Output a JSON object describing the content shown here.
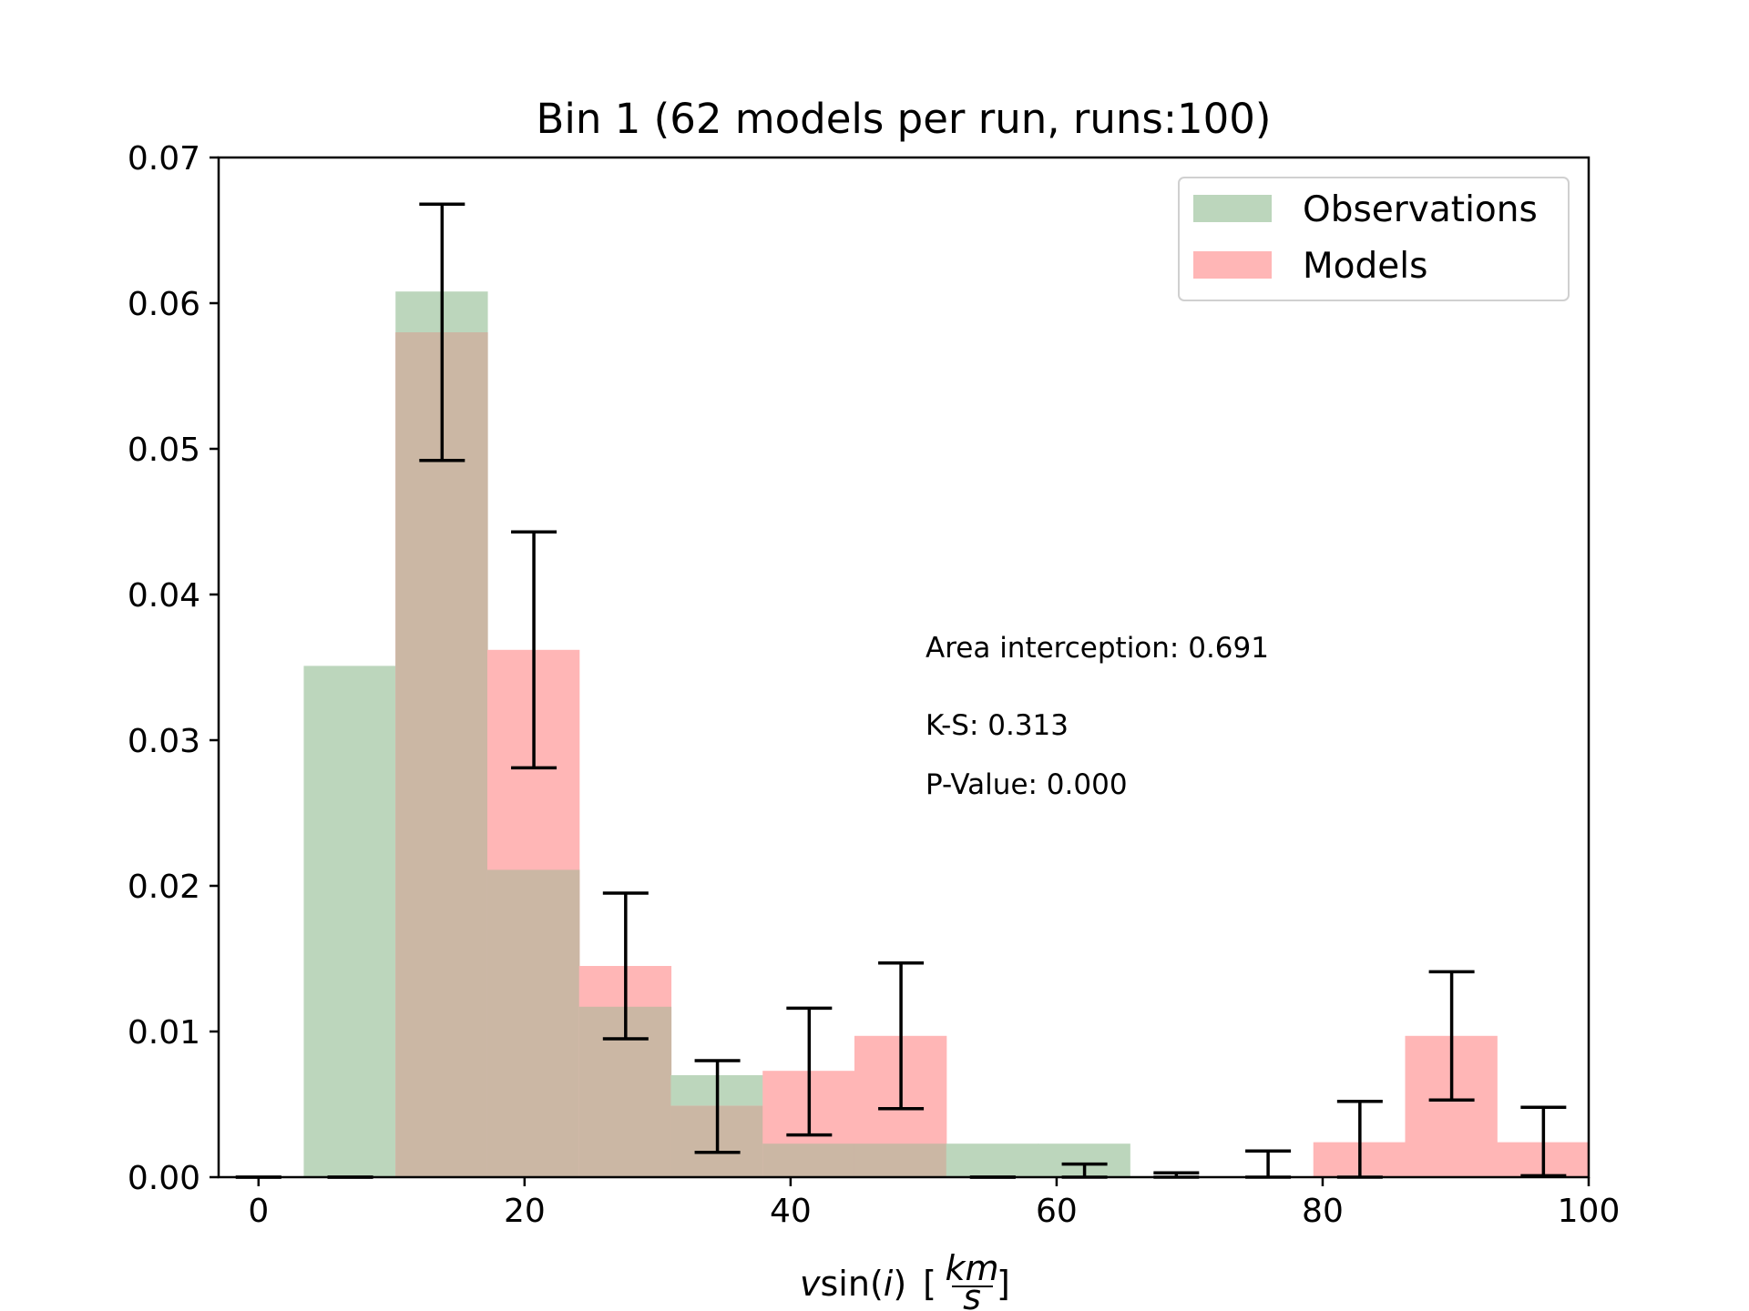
{
  "chart_data": {
    "type": "bar",
    "title": "Bin 1 (62 models per run, runs:100)",
    "xlim": [
      -3,
      100
    ],
    "ylim": [
      0,
      0.07
    ],
    "x_ticks": [
      0,
      20,
      40,
      60,
      80,
      100
    ],
    "y_ticks": [
      0.0,
      0.01,
      0.02,
      0.03,
      0.04,
      0.05,
      0.06,
      0.07
    ],
    "x_tick_labels": [
      "0",
      "20",
      "40",
      "60",
      "80",
      "100"
    ],
    "y_tick_labels": [
      "0.00",
      "0.01",
      "0.02",
      "0.03",
      "0.04",
      "0.05",
      "0.06",
      "0.07"
    ],
    "xlabel": {
      "prefix": "v",
      "sin": "sin(",
      "i": "i",
      "close": ")",
      "lbracket": "[",
      "num": "km",
      "den": "s",
      "rbracket": "]"
    },
    "bin_edges": [
      -3.5,
      3.4,
      10.3,
      17.2,
      24.1,
      31.0,
      37.9,
      44.8,
      51.7,
      58.6,
      65.5,
      72.4,
      79.3,
      86.2,
      93.1,
      100.0
    ],
    "series": [
      {
        "name": "Observations",
        "color": "#bcd6bc",
        "values": [
          0.0,
          0.0351,
          0.0608,
          0.0211,
          0.0117,
          0.007,
          0.0023,
          0.0023,
          0.0023,
          0.0023,
          0.0,
          0.0,
          0.0,
          0.0,
          0.0
        ]
      },
      {
        "name": "Models",
        "color": "#ffb6b6",
        "values": [
          0.0,
          0.0,
          0.058,
          0.0362,
          0.0145,
          0.0049,
          0.0073,
          0.0097,
          0.0,
          0.0,
          0.0,
          0.0,
          0.0024,
          0.0097,
          0.0024
        ]
      }
    ],
    "overlap_color": "#cbb7a4",
    "error_bars": [
      {
        "x": 0.0,
        "low": 0.0,
        "high": 0.0
      },
      {
        "x": 6.9,
        "low": 0.0,
        "high": 0.0
      },
      {
        "x": 13.8,
        "low": 0.0492,
        "high": 0.0668
      },
      {
        "x": 20.7,
        "low": 0.0281,
        "high": 0.0443
      },
      {
        "x": 27.6,
        "low": 0.0095,
        "high": 0.0195
      },
      {
        "x": 34.5,
        "low": 0.0017,
        "high": 0.008
      },
      {
        "x": 41.4,
        "low": 0.0029,
        "high": 0.0116
      },
      {
        "x": 48.3,
        "low": 0.0047,
        "high": 0.0147
      },
      {
        "x": 55.2,
        "low": 0.0,
        "high": 0.0
      },
      {
        "x": 62.1,
        "low": 0.0,
        "high": 0.0009
      },
      {
        "x": 69.0,
        "low": 0.0,
        "high": 0.0003
      },
      {
        "x": 75.9,
        "low": 0.0,
        "high": 0.0018
      },
      {
        "x": 82.8,
        "low": 0.0,
        "high": 0.0052
      },
      {
        "x": 89.7,
        "low": 0.0053,
        "high": 0.0141
      },
      {
        "x": 96.6,
        "low": 0.0001,
        "high": 0.0048
      }
    ],
    "annotations": [
      {
        "text": "Area interception: 0.691",
        "x": 50.0,
        "y": 0.036
      },
      {
        "text": "K-S: 0.313",
        "x": 50.0,
        "y": 0.0308
      },
      {
        "text": "P-Value: 0.000",
        "x": 50.0,
        "y": 0.0268
      }
    ],
    "legend": {
      "position": "upper right",
      "entries": [
        "Observations",
        "Models"
      ]
    },
    "grid": false
  }
}
